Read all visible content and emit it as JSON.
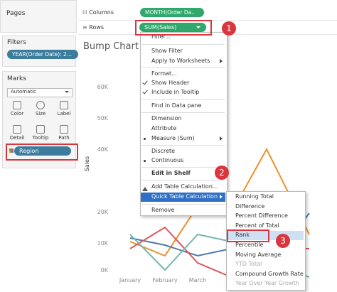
{
  "sidebar": {
    "pages": "Pages",
    "filters": {
      "title": "Filters",
      "pill": "YEAR(Order Date): 2..."
    },
    "marks": {
      "title": "Marks",
      "type": "Automatic",
      "buttons": [
        "Color",
        "Size",
        "Label",
        "Detail",
        "Tooltip",
        "Path"
      ],
      "pill": "Region"
    }
  },
  "shelves": {
    "columns": {
      "label": "Columns",
      "pill": "MONTH(Order Da.."
    },
    "rows": {
      "label": "Rows",
      "pill": "SUM(Sales)"
    }
  },
  "view": {
    "title": "Bump Chart",
    "y_axis_title": "Sales",
    "y_ticks": [
      "60K",
      "50K",
      "40K",
      "20K",
      "10K",
      "0K"
    ],
    "x_ticks": [
      "January",
      "February",
      "March"
    ]
  },
  "context_menu": {
    "items": [
      "Filter...",
      "Show Filter",
      "Apply to Worksheets",
      "Format...",
      "Show Header",
      "Include in Tooltip",
      "Find in Data pane",
      "Dimension",
      "Attribute",
      "Measure (Sum)",
      "Discrete",
      "Continuous",
      "Edit in Shelf",
      "Add Table Calculation...",
      "Quick Table Calculation",
      "Remove"
    ]
  },
  "submenu": {
    "items": [
      "Running Total",
      "Difference",
      "Percent Difference",
      "Percent of Total",
      "Rank",
      "Percentile",
      "Moving Average",
      "YTD Total",
      "Compound Growth Rate",
      "Year Over Year Growth"
    ]
  },
  "callouts": [
    "1",
    "2",
    "3"
  ]
}
